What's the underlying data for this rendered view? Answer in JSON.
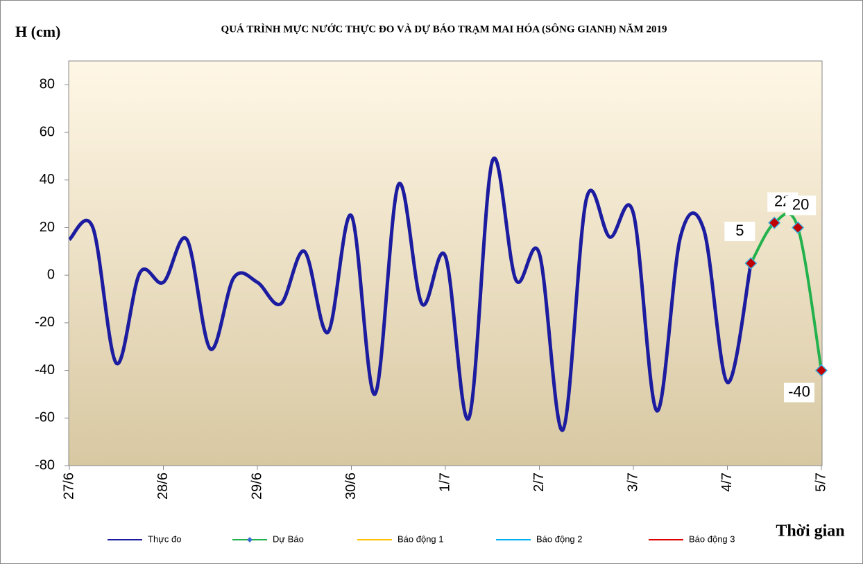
{
  "chart_data": {
    "type": "line",
    "title": "QUÁ TRÌNH MỰC NƯỚC THỰC ĐO VÀ DỰ BÁO TRẠM MAI HÓA (SÔNG GIANH) NĂM  2019",
    "y_label": "H (cm)",
    "x_label": "Thời gian",
    "categories": [
      "27/6",
      null,
      null,
      null,
      "28/6",
      null,
      null,
      null,
      "29/6",
      null,
      null,
      null,
      "30/6",
      null,
      null,
      null,
      "1/7",
      null,
      null,
      null,
      "2/7",
      null,
      null,
      null,
      "3/7",
      null,
      null,
      null,
      "4/7",
      null,
      null,
      null,
      "5/7"
    ],
    "ylim": [
      -80,
      90
    ],
    "yticks": [
      -80,
      -60,
      -40,
      -20,
      0,
      20,
      40,
      60,
      80
    ],
    "grid": false,
    "legend": "bottom",
    "series": [
      {
        "name": "Thực đo",
        "color": "#1c1ca0",
        "values": [
          15,
          20,
          -37,
          1,
          -3,
          15,
          -31,
          -1,
          -3,
          -12,
          10,
          -24,
          25,
          -50,
          38,
          -12,
          8,
          -60,
          48,
          -2,
          9,
          -65,
          32,
          16,
          26,
          -57,
          16,
          19,
          -45,
          5,
          null,
          null,
          null
        ]
      },
      {
        "name": "Dự Báo",
        "color": "#22b14c",
        "marker_color": "#c00000",
        "values": [
          null,
          null,
          null,
          null,
          null,
          null,
          null,
          null,
          null,
          null,
          null,
          null,
          null,
          null,
          null,
          null,
          null,
          null,
          null,
          null,
          null,
          null,
          null,
          null,
          null,
          null,
          null,
          null,
          null,
          5,
          22,
          20,
          -40
        ]
      },
      {
        "name": "Báo động 1",
        "color": "#ffc000",
        "values": [
          null,
          null,
          null,
          null,
          null,
          null,
          null,
          null,
          null,
          null,
          null,
          null,
          null,
          null,
          null,
          null,
          null,
          null,
          null,
          null,
          null,
          null,
          null,
          null,
          null,
          null,
          null,
          null,
          null,
          null,
          null,
          null,
          null
        ]
      },
      {
        "name": "Báo động 2",
        "color": "#00b0f0",
        "values": [
          null,
          null,
          null,
          null,
          null,
          null,
          null,
          null,
          null,
          null,
          null,
          null,
          null,
          null,
          null,
          null,
          null,
          null,
          null,
          null,
          null,
          null,
          null,
          null,
          null,
          null,
          null,
          null,
          null,
          null,
          null,
          null,
          null
        ]
      },
      {
        "name": "Báo động 3",
        "color": "#e00000",
        "values": [
          null,
          null,
          null,
          null,
          null,
          null,
          null,
          null,
          null,
          null,
          null,
          null,
          null,
          null,
          null,
          null,
          null,
          null,
          null,
          null,
          null,
          null,
          null,
          null,
          null,
          null,
          null,
          null,
          null,
          null,
          null,
          null,
          null
        ]
      }
    ]
  }
}
